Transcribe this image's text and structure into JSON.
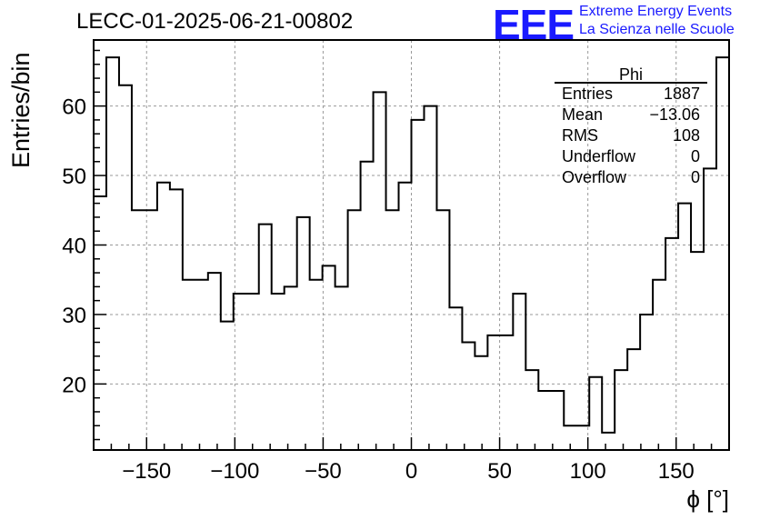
{
  "title": "LECC-01-2025-06-21-00802",
  "logo": {
    "mark": "EEE",
    "line1": "Extreme Energy Events",
    "line2": "La Scienza nelle Scuole",
    "color": "#1a1aff"
  },
  "stats": {
    "name": "Phi",
    "rows": [
      {
        "label": "Entries",
        "value": "1887"
      },
      {
        "label": "Mean",
        "value": "−13.06"
      },
      {
        "label": "RMS",
        "value": "108"
      },
      {
        "label": "Underflow",
        "value": "0"
      },
      {
        "label": "Overflow",
        "value": "0"
      }
    ]
  },
  "chart_data": {
    "type": "bar",
    "histogram": true,
    "xlabel": "ϕ [°]",
    "ylabel": "Entries/bin",
    "xlim": [
      -180,
      180
    ],
    "ylim": [
      10.5,
      69.5
    ],
    "xticks": [
      -150,
      -100,
      -50,
      0,
      50,
      100,
      150
    ],
    "yticks": [
      20,
      30,
      40,
      50,
      60
    ],
    "grid": true,
    "bin_edges_start": -180,
    "bin_width": 7.2,
    "values": [
      47,
      67,
      63,
      45,
      45,
      49,
      48,
      35,
      35,
      36,
      29,
      33,
      33,
      43,
      33,
      34,
      44,
      35,
      37,
      34,
      45,
      52,
      62,
      45,
      49,
      58,
      60,
      45,
      31,
      26,
      24,
      27,
      27,
      33,
      22,
      19,
      19,
      14,
      14,
      21,
      13,
      22,
      25,
      30,
      35,
      41,
      46,
      39,
      51,
      67
    ]
  }
}
